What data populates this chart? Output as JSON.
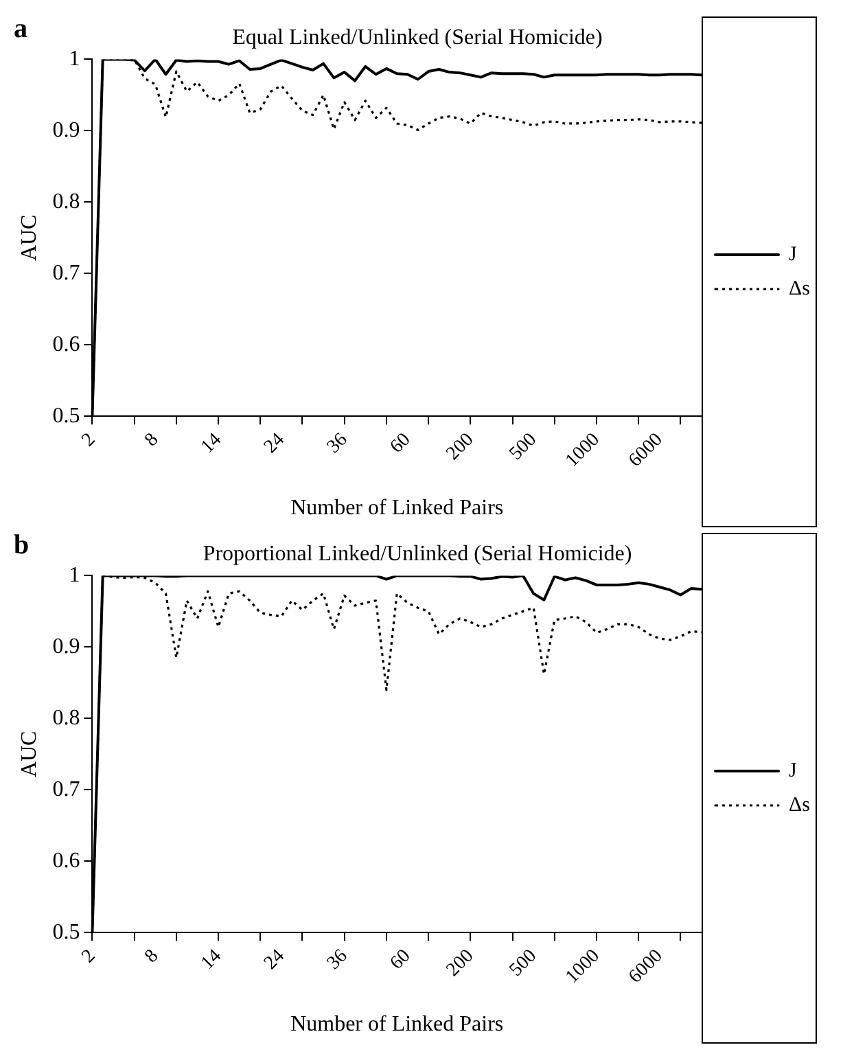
{
  "chart_data": [
    {
      "type": "line",
      "title": "Equal Linked/Unlinked (Serial Homicide)",
      "xlabel": "Number of Linked Pairs",
      "ylabel": "AUC",
      "annotations": [
        "a"
      ],
      "categories": [
        "2",
        null,
        null,
        null,
        null,
        null,
        "8",
        null,
        null,
        null,
        null,
        null,
        "14",
        null,
        null,
        null,
        null,
        null,
        "24",
        null,
        null,
        null,
        null,
        null,
        "36",
        null,
        null,
        null,
        null,
        null,
        "60",
        null,
        null,
        null,
        null,
        null,
        "200",
        null,
        null,
        null,
        null,
        null,
        "500",
        null,
        null,
        null,
        null,
        null,
        "1000",
        null,
        null,
        null,
        null,
        null,
        "6000",
        null,
        null,
        null,
        null
      ],
      "series": [
        {
          "name": "J",
          "color": "#000000",
          "line_style": "solid",
          "values": [
            0.5,
            1.0,
            1.0,
            1.0,
            0.999,
            0.984,
            1.0,
            0.979,
            0.999,
            0.997,
            0.998,
            0.997,
            0.997,
            0.993,
            0.998,
            0.986,
            0.987,
            0.993,
            0.999,
            0.994,
            0.989,
            0.985,
            0.994,
            0.974,
            0.982,
            0.97,
            0.99,
            0.979,
            0.987,
            0.98,
            0.979,
            0.972,
            0.983,
            0.986,
            0.982,
            0.981,
            0.978,
            0.975,
            0.981,
            0.98,
            0.98,
            0.98,
            0.979,
            0.975,
            0.978,
            0.978,
            0.978,
            0.978,
            0.978,
            0.979,
            0.979,
            0.979,
            0.979,
            0.978,
            0.978,
            0.979,
            0.979,
            0.979,
            0.978
          ]
        },
        {
          "name": "Δs",
          "color": "#000000",
          "line_style": "dotted",
          "values": [
            0.5,
            1.0,
            1.0,
            1.0,
            1.0,
            0.973,
            0.965,
            0.919,
            0.983,
            0.955,
            0.968,
            0.948,
            0.942,
            0.95,
            0.966,
            0.925,
            0.93,
            0.955,
            0.963,
            0.945,
            0.928,
            0.922,
            0.95,
            0.902,
            0.94,
            0.915,
            0.942,
            0.918,
            0.932,
            0.91,
            0.908,
            0.901,
            0.91,
            0.918,
            0.92,
            0.917,
            0.91,
            0.925,
            0.92,
            0.918,
            0.915,
            0.912,
            0.907,
            0.912,
            0.913,
            0.91,
            0.91,
            0.911,
            0.913,
            0.914,
            0.915,
            0.915,
            0.916,
            0.915,
            0.912,
            0.913,
            0.913,
            0.912,
            0.911
          ]
        }
      ],
      "ylim": [
        0.5,
        1
      ],
      "yticks": [
        0.5,
        0.6,
        0.7,
        0.8,
        0.9,
        1
      ],
      "legend": "right",
      "grid": false,
      "marker": "none"
    },
    {
      "type": "line",
      "title": "Proportional Linked/Unlinked (Serial Homicide)",
      "xlabel": "Number of Linked Pairs",
      "ylabel": "AUC",
      "annotations": [
        "b"
      ],
      "categories": [
        "2",
        null,
        null,
        null,
        null,
        null,
        "8",
        null,
        null,
        null,
        null,
        null,
        "14",
        null,
        null,
        null,
        null,
        null,
        "24",
        null,
        null,
        null,
        null,
        null,
        "36",
        null,
        null,
        null,
        null,
        null,
        "60",
        null,
        null,
        null,
        null,
        null,
        "200",
        null,
        null,
        null,
        null,
        null,
        "500",
        null,
        null,
        null,
        null,
        null,
        "1000",
        null,
        null,
        null,
        null,
        null,
        "6000",
        null,
        null,
        null,
        null
      ],
      "series": [
        {
          "name": "J",
          "color": "#000000",
          "line_style": "solid",
          "values": [
            0.5,
            1.0,
            1.0,
            1.0,
            1.0,
            1.0,
            1.0,
            0.999,
            0.999,
            1.0,
            1.0,
            1.0,
            1.0,
            1.0,
            1.0,
            1.0,
            1.0,
            1.0,
            1.0,
            1.0,
            1.0,
            1.0,
            1.0,
            1.0,
            1.0,
            1.0,
            1.0,
            1.0,
            0.995,
            1.0,
            1.0,
            1.0,
            1.0,
            1.0,
            1.0,
            0.999,
            0.999,
            0.995,
            0.996,
            0.999,
            0.998,
            1.0,
            0.975,
            0.966,
            0.999,
            0.994,
            0.997,
            0.993,
            0.987,
            0.987,
            0.987,
            0.988,
            0.99,
            0.988,
            0.984,
            0.98,
            0.973,
            0.982,
            0.981
          ]
        },
        {
          "name": "Δs",
          "color": "#000000",
          "line_style": "dotted",
          "values": [
            0.5,
            1.0,
            0.998,
            0.997,
            0.998,
            0.997,
            0.99,
            0.975,
            0.885,
            0.965,
            0.94,
            0.978,
            0.928,
            0.975,
            0.978,
            0.965,
            0.948,
            0.945,
            0.943,
            0.965,
            0.952,
            0.965,
            0.975,
            0.925,
            0.972,
            0.958,
            0.962,
            0.965,
            0.84,
            0.975,
            0.962,
            0.955,
            0.95,
            0.918,
            0.932,
            0.94,
            0.935,
            0.928,
            0.932,
            0.94,
            0.945,
            0.95,
            0.955,
            0.862,
            0.938,
            0.94,
            0.943,
            0.935,
            0.92,
            0.925,
            0.932,
            0.932,
            0.928,
            0.918,
            0.912,
            0.91,
            0.915,
            0.922,
            0.921
          ]
        }
      ],
      "ylim": [
        0.5,
        1
      ],
      "yticks": [
        0.5,
        0.6,
        0.7,
        0.8,
        0.9,
        1
      ],
      "legend": "right",
      "grid": false,
      "marker": "none"
    }
  ]
}
